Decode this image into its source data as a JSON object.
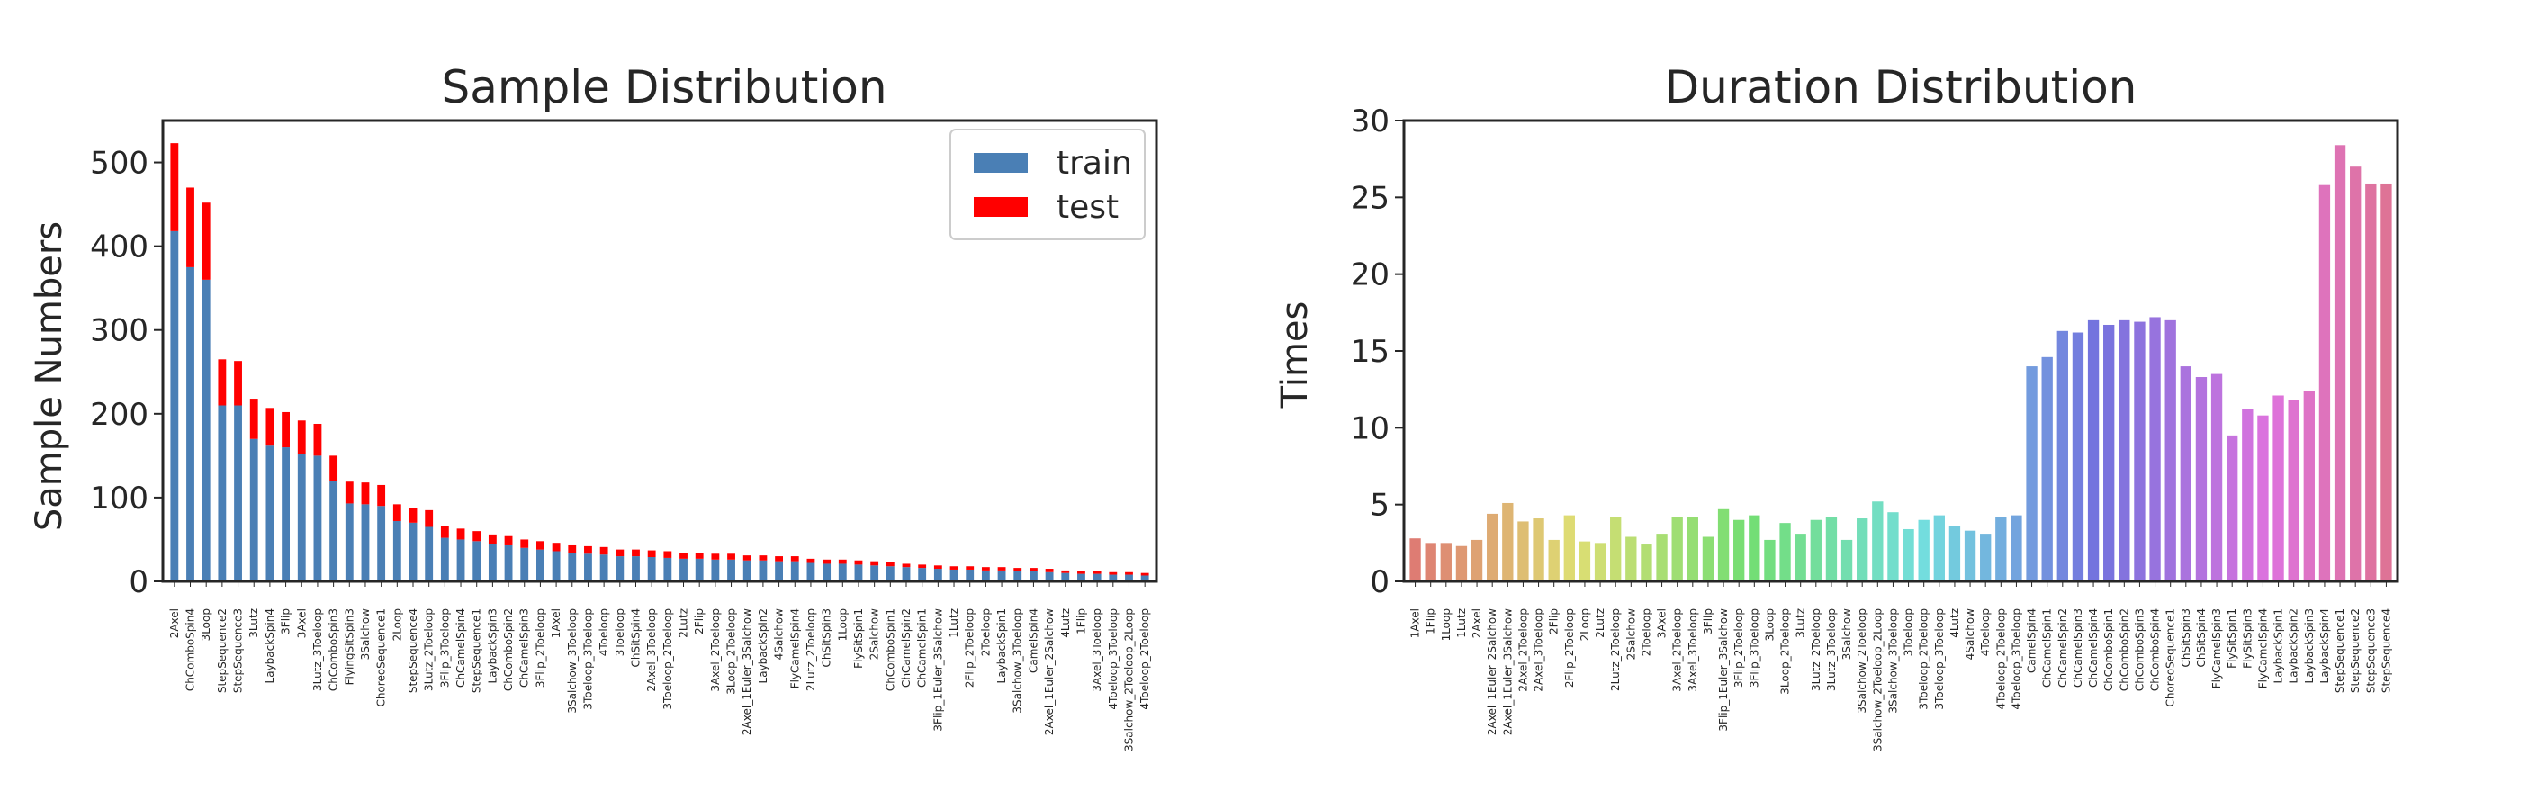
{
  "chart_data": [
    {
      "type": "bar",
      "stacked": true,
      "title": "Sample Distribution",
      "ylabel": "Sample Numbers",
      "ylim": [
        0,
        550
      ],
      "yticks": [
        0,
        100,
        200,
        300,
        400,
        500
      ],
      "grid": false,
      "legend_position": "top-right",
      "categories": [
        "2Axel",
        "ChComboSpin4",
        "3Loop",
        "StepSequence2",
        "StepSequence3",
        "3Lutz",
        "LaybackSpin4",
        "3Flip",
        "3Axel",
        "3Lutz_3Toeloop",
        "ChComboSpin3",
        "FlyingSitSpin3",
        "3Salchow",
        "ChoreoSequence1",
        "2Loop",
        "StepSequence4",
        "3Lutz_2Toeloop",
        "3Flip_3Toeloop",
        "ChCamelSpin4",
        "StepSequence1",
        "LaybackSpin3",
        "ChComboSpin2",
        "ChCamelSpin3",
        "3Flip_2Toeloop",
        "1Axel",
        "3Salchow_3Toeloop",
        "3Toeloop_3Toeloop",
        "4Toeloop",
        "3Toeloop",
        "ChSitSpin4",
        "2Axel_3Toeloop",
        "3Toeloop_2Toeloop",
        "2Lutz",
        "2Flip",
        "3Axel_2Toeloop",
        "3Loop_2Toeloop",
        "2Axel_1Euler_3Salchow",
        "LaybackSpin2",
        "4Salchow",
        "FlyCamelSpin4",
        "2Lutz_2Toeloop",
        "ChSitSpin3",
        "1Loop",
        "FlySitSpin1",
        "2Salchow",
        "ChComboSpin1",
        "ChCamelSpin2",
        "ChCamelSpin1",
        "3Flip_1Euler_3Salchow",
        "1Lutz",
        "2Flip_2Toeloop",
        "2Toeloop",
        "LaybackSpin1",
        "3Salchow_3Toeloop",
        "CamelSpin4",
        "2Axel_1Euler_2Salchow",
        "4Lutz",
        "1Flip",
        "3Axel_3Toeloop",
        "4Toeloop_3Toeloop",
        "3Salchow_2Toeloop_2Loop",
        "4Toeloop_2Toeloop"
      ],
      "series": [
        {
          "name": "train",
          "color": "#4a7fb5",
          "values": [
            418,
            375,
            360,
            210,
            210,
            170,
            162,
            160,
            152,
            150,
            120,
            93,
            92,
            90,
            72,
            70,
            65,
            52,
            50,
            48,
            45,
            43,
            40,
            38,
            36,
            34,
            33,
            32,
            30,
            30,
            29,
            28,
            27,
            27,
            26,
            26,
            25,
            25,
            24,
            24,
            22,
            21,
            21,
            20,
            19,
            18,
            17,
            16,
            15,
            14,
            14,
            13,
            13,
            12,
            12,
            11,
            10,
            9,
            9,
            8,
            8,
            7
          ]
        },
        {
          "name": "test",
          "color": "#ff0000",
          "values": [
            105,
            95,
            92,
            55,
            53,
            48,
            45,
            42,
            40,
            38,
            30,
            26,
            26,
            25,
            20,
            18,
            20,
            14,
            13,
            12,
            11,
            11,
            10,
            10,
            10,
            9,
            9,
            9,
            8,
            8,
            8,
            8,
            7,
            7,
            7,
            7,
            6,
            6,
            6,
            6,
            5,
            5,
            5,
            5,
            5,
            5,
            4,
            4,
            4,
            4,
            4,
            4,
            4,
            4,
            4,
            4,
            3,
            3,
            3,
            3,
            3,
            3
          ]
        }
      ]
    },
    {
      "type": "bar",
      "title": "Duration Distribution",
      "ylabel": "Times",
      "ylim": [
        0,
        30
      ],
      "yticks": [
        0,
        5,
        10,
        15,
        20,
        25,
        30
      ],
      "grid": false,
      "colormap": "husl",
      "categories": [
        "1Axel",
        "1Flip",
        "1Loop",
        "1Lutz",
        "2Axel",
        "2Axel_1Euler_2Salchow",
        "2Axel_1Euler_3Salchow",
        "2Axel_2Toeloop",
        "2Axel_3Toeloop",
        "2Flip",
        "2Flip_2Toeloop",
        "2Loop",
        "2Lutz",
        "2Lutz_2Toeloop",
        "2Salchow",
        "2Toeloop",
        "3Axel",
        "3Axel_2Toeloop",
        "3Axel_3Toeloop",
        "3Flip",
        "3Flip_1Euler_3Salchow",
        "3Flip_2Toeloop",
        "3Flip_3Toeloop",
        "3Loop",
        "3Loop_2Toeloop",
        "3Lutz",
        "3Lutz_2Toeloop",
        "3Lutz_3Toeloop",
        "3Salchow",
        "3Salchow_2Toeloop",
        "3Salchow_2Toeloop_2Loop",
        "3Salchow_3Toeloop",
        "3Toeloop",
        "3Toeloop_2Toeloop",
        "3Toeloop_3Toeloop",
        "4Lutz",
        "4Salchow",
        "4Toeloop",
        "4Toeloop_2Toeloop",
        "4Toeloop_3Toeloop",
        "CamelSpin4",
        "ChCamelSpin1",
        "ChCamelSpin2",
        "ChCamelSpin3",
        "ChCamelSpin4",
        "ChComboSpin1",
        "ChComboSpin2",
        "ChComboSpin3",
        "ChComboSpin4",
        "ChoreoSequence1",
        "ChSitSpin3",
        "ChSitSpin4",
        "FlyCamelSpin3",
        "FlySitSpin1",
        "FlySitSpin3",
        "FlyCamelSpin4",
        "LaybackSpin1",
        "LaybackSpin2",
        "LaybackSpin3",
        "LaybackSpin4",
        "StepSequence1",
        "StepSequence2",
        "StepSequence3",
        "StepSequence4"
      ],
      "values": [
        2.8,
        2.5,
        2.5,
        2.3,
        2.7,
        4.4,
        5.1,
        3.9,
        4.1,
        2.7,
        4.3,
        2.6,
        2.5,
        4.2,
        2.9,
        2.4,
        3.1,
        4.2,
        4.2,
        2.9,
        4.7,
        4.0,
        4.3,
        2.7,
        3.8,
        3.1,
        4.0,
        4.2,
        2.7,
        4.1,
        5.2,
        4.5,
        3.4,
        4.0,
        4.3,
        3.6,
        3.3,
        3.1,
        4.2,
        4.3,
        14.0,
        14.6,
        16.3,
        16.2,
        17.0,
        16.7,
        17.0,
        16.9,
        17.2,
        17.0,
        14.0,
        13.3,
        13.5,
        9.5,
        11.2,
        10.8,
        12.1,
        11.8,
        12.4,
        25.8,
        28.4,
        27.0,
        25.9,
        25.9
      ]
    }
  ]
}
